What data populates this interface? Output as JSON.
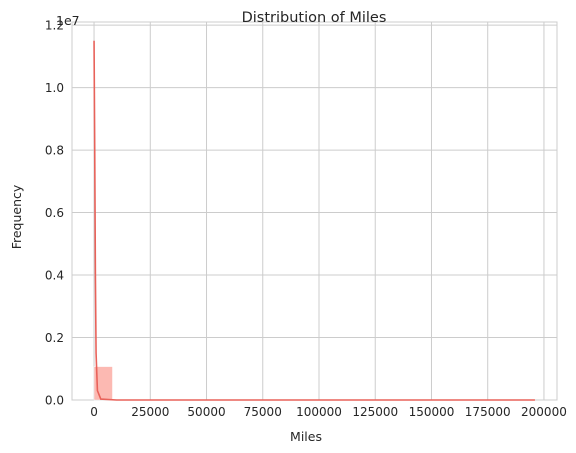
{
  "chart_data": {
    "type": "histogram",
    "title": "Distribution of Miles",
    "xlabel": "Miles",
    "ylabel": "Frequency",
    "y_offset_label": "1e7",
    "xlim": [
      -9800,
      205800
    ],
    "ylim": [
      0,
      12100000
    ],
    "x_ticks": [
      0,
      25000,
      50000,
      75000,
      100000,
      125000,
      150000,
      175000,
      200000
    ],
    "x_tick_labels": [
      "0",
      "25000",
      "50000",
      "75000",
      "100000",
      "125000",
      "150000",
      "175000",
      "200000"
    ],
    "y_ticks": [
      0,
      2000000,
      4000000,
      6000000,
      8000000,
      10000000,
      12000000
    ],
    "y_tick_labels": [
      "0.0",
      "0.2",
      "0.4",
      "0.6",
      "0.8",
      "1.0",
      "1.2"
    ],
    "grid": true,
    "bar_color": "#fa8072",
    "kde_color": "#e8625a",
    "bins": [
      {
        "x0": 0,
        "x1": 8200,
        "count": 1070000
      }
    ],
    "kde_curve": {
      "x": [
        0,
        300,
        600,
        900,
        1500,
        3000,
        10000,
        50000,
        100000,
        150000,
        196000
      ],
      "y": [
        11500000,
        8000000,
        4000000,
        1500000,
        300000,
        30000,
        0,
        0,
        0,
        0,
        0
      ]
    }
  }
}
